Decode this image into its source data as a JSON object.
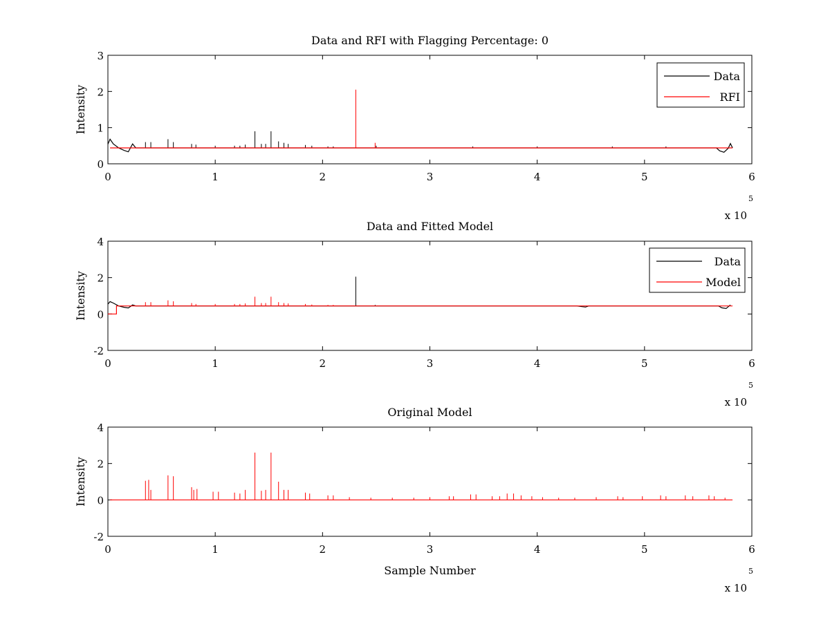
{
  "chart_data": [
    {
      "type": "line",
      "title": "Data and RFI with Flagging Percentage: 0",
      "xlabel": "",
      "ylabel": "Intensity",
      "xlim": [
        0,
        600000
      ],
      "ylim": [
        0,
        3
      ],
      "xticks": [
        0,
        1,
        2,
        3,
        4,
        5,
        6
      ],
      "yticks": [
        0,
        1,
        2,
        3
      ],
      "x_multiplier": "x 10",
      "x_multiplier_exp": "5",
      "legend_position": "top-right",
      "baseline": 0.44,
      "series": [
        {
          "name": "Data",
          "color": "#000000",
          "dips": [
            [
              2000,
              0.68
            ],
            [
              5000,
              0.55
            ],
            [
              10000,
              0.44
            ],
            [
              15000,
              0.37
            ],
            [
              19000,
              0.33
            ],
            [
              23000,
              0.55
            ],
            [
              570000,
              0.36
            ],
            [
              574000,
              0.32
            ],
            [
              578000,
              0.43
            ],
            [
              580000,
              0.56
            ],
            [
              582000,
              0.44
            ]
          ],
          "spikes": [
            [
              35000,
              0.6
            ],
            [
              40000,
              0.6
            ],
            [
              56000,
              0.68
            ],
            [
              61000,
              0.6
            ],
            [
              78000,
              0.55
            ],
            [
              82000,
              0.53
            ],
            [
              100000,
              0.5
            ],
            [
              118000,
              0.5
            ],
            [
              123000,
              0.5
            ],
            [
              128000,
              0.53
            ],
            [
              137000,
              0.9
            ],
            [
              143000,
              0.55
            ],
            [
              147000,
              0.55
            ],
            [
              152000,
              0.9
            ],
            [
              159000,
              0.62
            ],
            [
              164000,
              0.58
            ],
            [
              168000,
              0.55
            ],
            [
              184000,
              0.52
            ],
            [
              190000,
              0.5
            ],
            [
              205000,
              0.48
            ],
            [
              210000,
              0.48
            ],
            [
              250000,
              0.5
            ],
            [
              340000,
              0.48
            ],
            [
              400000,
              0.48
            ],
            [
              470000,
              0.48
            ],
            [
              520000,
              0.48
            ]
          ]
        },
        {
          "name": "RFI",
          "color": "#ff0000",
          "spikes": [
            [
              231000,
              2.05
            ],
            [
              249000,
              0.58
            ]
          ]
        }
      ]
    },
    {
      "type": "line",
      "title": "Data and Fitted Model",
      "xlabel": "",
      "ylabel": "Intensity",
      "xlim": [
        0,
        600000
      ],
      "ylim": [
        -2,
        4
      ],
      "xticks": [
        0,
        1,
        2,
        3,
        4,
        5,
        6
      ],
      "yticks": [
        -2,
        0,
        2,
        4
      ],
      "x_multiplier": "x 10",
      "x_multiplier_exp": "5",
      "legend_position": "top-right",
      "baseline": 0.44,
      "series": [
        {
          "name": "Data",
          "color": "#000000",
          "dips": [
            [
              2000,
              0.68
            ],
            [
              5000,
              0.6
            ],
            [
              10000,
              0.44
            ],
            [
              15000,
              0.37
            ],
            [
              19000,
              0.33
            ],
            [
              23000,
              0.5
            ],
            [
              440000,
              0.42
            ],
            [
              445000,
              0.38
            ],
            [
              572000,
              0.34
            ],
            [
              576000,
              0.3
            ],
            [
              580000,
              0.5
            ]
          ],
          "spikes": [
            [
              231000,
              2.05
            ],
            [
              249000,
              0.5
            ]
          ]
        },
        {
          "name": "Model",
          "color": "#ff0000",
          "step": [
            [
              0,
              0.0
            ],
            [
              8000,
              0.0
            ],
            [
              8000,
              0.44
            ]
          ],
          "spikes": [
            [
              35000,
              0.65
            ],
            [
              40000,
              0.65
            ],
            [
              56000,
              0.75
            ],
            [
              61000,
              0.7
            ],
            [
              78000,
              0.6
            ],
            [
              82000,
              0.55
            ],
            [
              100000,
              0.55
            ],
            [
              118000,
              0.55
            ],
            [
              123000,
              0.55
            ],
            [
              128000,
              0.58
            ],
            [
              137000,
              0.95
            ],
            [
              143000,
              0.6
            ],
            [
              147000,
              0.6
            ],
            [
              152000,
              0.95
            ],
            [
              159000,
              0.65
            ],
            [
              164000,
              0.6
            ],
            [
              168000,
              0.58
            ],
            [
              184000,
              0.55
            ],
            [
              190000,
              0.52
            ],
            [
              205000,
              0.5
            ],
            [
              210000,
              0.5
            ]
          ]
        }
      ]
    },
    {
      "type": "line",
      "title": "Original Model",
      "xlabel": "Sample Number",
      "ylabel": "Intensity",
      "xlim": [
        0,
        600000
      ],
      "ylim": [
        -2,
        4
      ],
      "xticks": [
        0,
        1,
        2,
        3,
        4,
        5,
        6
      ],
      "yticks": [
        -2,
        0,
        2,
        4
      ],
      "x_multiplier": "x 10",
      "x_multiplier_exp": "5",
      "baseline": 0.0,
      "series": [
        {
          "color": "#ff0000",
          "spikes": [
            [
              35000,
              1.05
            ],
            [
              38000,
              1.1
            ],
            [
              40000,
              0.55
            ],
            [
              56000,
              1.35
            ],
            [
              61000,
              1.3
            ],
            [
              78000,
              0.7
            ],
            [
              80000,
              0.55
            ],
            [
              83000,
              0.6
            ],
            [
              98000,
              0.45
            ],
            [
              103000,
              0.45
            ],
            [
              118000,
              0.4
            ],
            [
              123000,
              0.35
            ],
            [
              128000,
              0.55
            ],
            [
              137000,
              2.6
            ],
            [
              143000,
              0.5
            ],
            [
              147000,
              0.55
            ],
            [
              152000,
              2.6
            ],
            [
              159000,
              1.0
            ],
            [
              164000,
              0.55
            ],
            [
              168000,
              0.55
            ],
            [
              184000,
              0.4
            ],
            [
              188000,
              0.35
            ],
            [
              205000,
              0.25
            ],
            [
              210000,
              0.25
            ],
            [
              225000,
              0.15
            ],
            [
              245000,
              0.12
            ],
            [
              265000,
              0.12
            ],
            [
              285000,
              0.12
            ],
            [
              300000,
              0.15
            ],
            [
              318000,
              0.2
            ],
            [
              322000,
              0.2
            ],
            [
              338000,
              0.3
            ],
            [
              343000,
              0.3
            ],
            [
              358000,
              0.2
            ],
            [
              365000,
              0.2
            ],
            [
              372000,
              0.35
            ],
            [
              378000,
              0.35
            ],
            [
              385000,
              0.25
            ],
            [
              395000,
              0.2
            ],
            [
              405000,
              0.15
            ],
            [
              420000,
              0.12
            ],
            [
              435000,
              0.12
            ],
            [
              455000,
              0.15
            ],
            [
              475000,
              0.2
            ],
            [
              480000,
              0.15
            ],
            [
              498000,
              0.2
            ],
            [
              515000,
              0.25
            ],
            [
              520000,
              0.2
            ],
            [
              538000,
              0.25
            ],
            [
              545000,
              0.2
            ],
            [
              560000,
              0.25
            ],
            [
              565000,
              0.2
            ],
            [
              575000,
              0.12
            ]
          ]
        }
      ]
    }
  ]
}
